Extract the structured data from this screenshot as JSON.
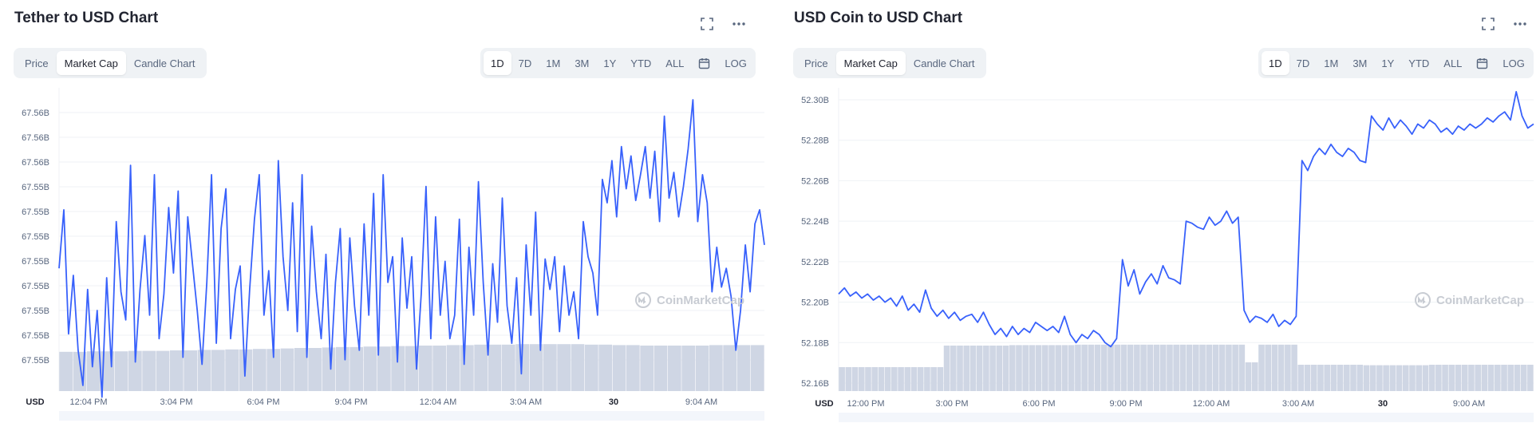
{
  "icons": {
    "expand": "expand-icon",
    "more": "more-icon",
    "calendar": "calendar-icon",
    "logo": "coinmarketcap-logo-icon"
  },
  "colors": {
    "line": "#3861fb",
    "volume": "#cfd6e4",
    "grid": "#eff2f5",
    "active_bg": "#ffffff",
    "seg_bg": "#eff2f5"
  },
  "panels": [
    {
      "title": "Tether to USD Chart",
      "tabs": [
        "Price",
        "Market Cap",
        "Candle Chart"
      ],
      "active_tab": "Market Cap",
      "ranges": [
        "1D",
        "7D",
        "1M",
        "3M",
        "1Y",
        "YTD",
        "ALL"
      ],
      "active_range": "1D",
      "log_label": "LOG",
      "watermark": "CoinMarketCap"
    },
    {
      "title": "USD Coin to USD Chart",
      "tabs": [
        "Price",
        "Market Cap",
        "Candle Chart"
      ],
      "active_tab": "Market Cap",
      "ranges": [
        "1D",
        "7D",
        "1M",
        "3M",
        "1Y",
        "YTD",
        "ALL"
      ],
      "active_range": "1D",
      "log_label": "LOG",
      "watermark": "CoinMarketCap"
    }
  ],
  "chart_data": [
    {
      "type": "line",
      "title": "Tether to USD Chart",
      "currency_label": "USD",
      "y_tick_labels": [
        "67.56B",
        "67.56B",
        "67.56B",
        "67.55B",
        "67.55B",
        "67.55B",
        "67.55B",
        "67.55B",
        "67.55B",
        "67.55B",
        "67.55B"
      ],
      "x_tick_labels": [
        "12:04 PM",
        "3:04 PM",
        "6:04 PM",
        "9:04 PM",
        "12:04 AM",
        "3:04 AM",
        "30",
        "9:04 AM"
      ],
      "x_tick_bold": [
        false,
        false,
        false,
        false,
        false,
        false,
        true,
        false
      ],
      "ylim": [
        67.5491,
        67.5612
      ],
      "grid": true,
      "series": [
        {
          "values": [
            67.554,
            67.5565,
            67.5512,
            67.5537,
            67.5505,
            67.549,
            67.5531,
            67.5498,
            67.5522,
            67.5485,
            67.5536,
            67.5498,
            67.556,
            67.553,
            67.5518,
            67.5584,
            67.55,
            67.5531,
            67.5554,
            67.552,
            67.558,
            67.551,
            67.5529,
            67.5566,
            67.5538,
            67.5573,
            67.5502,
            67.5562,
            67.5542,
            67.5522,
            67.5499,
            67.5534,
            67.558,
            67.5508,
            67.5557,
            67.5574,
            67.551,
            67.5531,
            67.5541,
            67.5494,
            67.5531,
            67.5561,
            67.558,
            67.552,
            67.5539,
            67.5502,
            67.5586,
            67.5545,
            67.5522,
            67.5568,
            67.5513,
            67.558,
            67.5502,
            67.5558,
            67.553,
            67.551,
            67.5546,
            67.5497,
            67.5534,
            67.5557,
            67.5501,
            67.5553,
            67.5524,
            67.5505,
            67.5559,
            67.552,
            67.5572,
            67.5503,
            67.558,
            67.5534,
            67.5545,
            67.55,
            67.5553,
            67.5523,
            67.5545,
            67.5497,
            67.5529,
            67.5575,
            67.551,
            67.5562,
            67.552,
            67.5543,
            67.551,
            67.552,
            67.5561,
            67.5499,
            67.5549,
            67.552,
            67.5577,
            67.5534,
            67.5503,
            67.5542,
            67.5517,
            67.557,
            67.5524,
            67.5508,
            67.5536,
            67.5495,
            67.555,
            67.552,
            67.5564,
            67.5505,
            67.5544,
            67.5531,
            67.5545,
            67.5513,
            67.5541,
            67.552,
            67.553,
            67.551,
            67.556,
            67.5545,
            67.5538,
            67.552,
            67.5578,
            67.5568,
            67.5586,
            67.5562,
            67.5592,
            67.5574,
            67.5588,
            67.5569,
            67.558,
            67.5592,
            67.557,
            67.559,
            67.556,
            67.5605,
            67.557,
            67.5581,
            67.5562,
            67.5575,
            67.5591,
            67.5612,
            67.556,
            67.558,
            67.5568,
            67.553,
            67.5549,
            67.5532,
            67.554,
            67.5528,
            67.5505,
            67.5522,
            67.555,
            67.553,
            67.5559,
            67.5565,
            67.555
          ]
        }
      ],
      "volume": [
        0.82,
        0.82,
        0.83,
        0.83,
        0.83,
        0.84,
        0.84,
        0.84,
        0.85,
        0.85,
        0.86,
        0.86,
        0.87,
        0.87,
        0.88,
        0.88,
        0.89,
        0.9,
        0.9,
        0.91,
        0.92,
        0.92,
        0.93,
        0.93,
        0.94,
        0.94,
        0.95,
        0.95,
        0.96,
        0.96,
        0.97,
        0.97,
        0.97,
        0.98,
        0.98,
        0.98,
        0.98,
        0.98,
        0.97,
        0.97,
        0.96,
        0.96,
        0.95,
        0.95,
        0.95,
        0.95,
        0.95,
        0.96,
        0.96,
        0.96,
        0.96
      ]
    },
    {
      "type": "line",
      "title": "USD Coin to USD Chart",
      "currency_label": "USD",
      "y_tick_labels": [
        "52.30B",
        "52.28B",
        "52.26B",
        "52.24B",
        "52.22B",
        "52.20B",
        "52.18B",
        "52.16B"
      ],
      "y_tick_values": [
        52.3,
        52.28,
        52.26,
        52.24,
        52.22,
        52.2,
        52.18,
        52.16
      ],
      "x_tick_labels": [
        "12:00 PM",
        "3:00 PM",
        "6:00 PM",
        "9:00 PM",
        "12:00 AM",
        "3:00 AM",
        "30",
        "9:00 AM"
      ],
      "x_tick_bold": [
        false,
        false,
        false,
        false,
        false,
        false,
        true,
        false
      ],
      "ylim": [
        52.16,
        52.3
      ],
      "grid": true,
      "series": [
        {
          "values": [
            52.204,
            52.207,
            52.203,
            52.205,
            52.202,
            52.204,
            52.201,
            52.203,
            52.2,
            52.202,
            52.198,
            52.203,
            52.196,
            52.199,
            52.195,
            52.206,
            52.197,
            52.193,
            52.196,
            52.192,
            52.195,
            52.191,
            52.193,
            52.194,
            52.19,
            52.195,
            52.189,
            52.184,
            52.187,
            52.183,
            52.188,
            52.184,
            52.187,
            52.185,
            52.19,
            52.188,
            52.186,
            52.188,
            52.185,
            52.193,
            52.184,
            52.18,
            52.184,
            52.182,
            52.186,
            52.184,
            52.18,
            52.178,
            52.182,
            52.221,
            52.208,
            52.216,
            52.204,
            52.21,
            52.214,
            52.209,
            52.218,
            52.212,
            52.211,
            52.209,
            52.24,
            52.239,
            52.237,
            52.236,
            52.242,
            52.238,
            52.24,
            52.245,
            52.239,
            52.242,
            52.196,
            52.19,
            52.193,
            52.192,
            52.19,
            52.194,
            52.188,
            52.191,
            52.189,
            52.193,
            52.27,
            52.265,
            52.272,
            52.276,
            52.273,
            52.278,
            52.274,
            52.272,
            52.276,
            52.274,
            52.27,
            52.269,
            52.292,
            52.288,
            52.285,
            52.291,
            52.286,
            52.29,
            52.287,
            52.283,
            52.288,
            52.286,
            52.29,
            52.288,
            52.284,
            52.286,
            52.283,
            52.287,
            52.285,
            52.288,
            52.286,
            52.288,
            52.291,
            52.289,
            52.292,
            52.294,
            52.29,
            52.304,
            52.292,
            52.286,
            52.288
          ]
        }
      ],
      "volume": [
        0.5,
        0.5,
        0.5,
        0.5,
        0.5,
        0.5,
        0.5,
        0.5,
        0.5,
        0.5,
        0.5,
        0.5,
        0.5,
        0.5,
        0.5,
        0.5,
        0.95,
        0.95,
        0.95,
        0.95,
        0.95,
        0.95,
        0.95,
        0.95,
        0.95,
        0.95,
        0.96,
        0.96,
        0.96,
        0.96,
        0.96,
        0.96,
        0.96,
        0.96,
        0.96,
        0.96,
        0.97,
        0.97,
        0.97,
        0.97,
        0.97,
        0.97,
        0.97,
        0.97,
        0.97,
        0.97,
        0.97,
        0.97,
        0.97,
        0.97,
        0.97,
        0.97,
        0.97,
        0.97,
        0.97,
        0.97,
        0.97,
        0.97,
        0.97,
        0.97,
        0.97,
        0.97,
        0.6,
        0.6,
        0.97,
        0.97,
        0.97,
        0.97,
        0.97,
        0.97,
        0.55,
        0.55,
        0.55,
        0.55,
        0.55,
        0.55,
        0.55,
        0.55,
        0.55,
        0.55,
        0.54,
        0.54,
        0.54,
        0.54,
        0.54,
        0.54,
        0.54,
        0.54,
        0.54,
        0.54,
        0.55,
        0.55,
        0.55,
        0.55,
        0.55,
        0.55,
        0.55,
        0.55,
        0.55,
        0.55,
        0.55,
        0.55,
        0.55,
        0.55,
        0.55,
        0.55
      ]
    }
  ]
}
